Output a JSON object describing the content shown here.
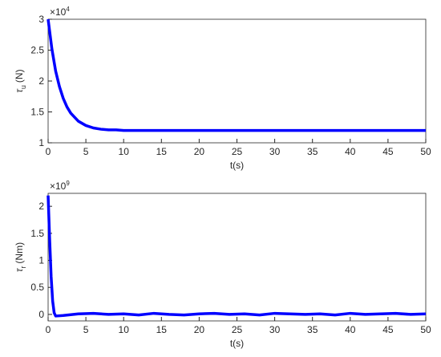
{
  "chart_data": [
    {
      "type": "line",
      "xlabel": "t(s)",
      "ylabel": {
        "symbol": "τ",
        "subscript": "u",
        "unit": "(N)"
      },
      "y_multiplier": {
        "base": "×10",
        "exponent": "4"
      },
      "x": [
        0,
        0.5,
        1,
        1.5,
        2,
        2.5,
        3,
        4,
        5,
        6,
        7,
        8,
        9,
        10,
        12.5,
        15,
        17.5,
        20,
        22.5,
        25,
        27.5,
        30,
        32.5,
        35,
        37.5,
        40,
        42.5,
        45,
        47.5,
        50
      ],
      "series": [
        {
          "color": "#0000ff",
          "values": [
            3.0,
            2.52,
            2.16,
            1.91,
            1.72,
            1.58,
            1.48,
            1.35,
            1.28,
            1.24,
            1.22,
            1.21,
            1.21,
            1.2,
            1.2,
            1.2,
            1.2,
            1.2,
            1.2,
            1.2,
            1.2,
            1.2,
            1.2,
            1.2,
            1.2,
            1.2,
            1.2,
            1.2,
            1.2,
            1.2
          ]
        }
      ],
      "xlim": [
        0,
        50
      ],
      "xticks": [
        0,
        5,
        10,
        15,
        20,
        25,
        30,
        35,
        40,
        45,
        50
      ],
      "ylim": [
        1,
        3
      ],
      "yticks": [
        1,
        1.5,
        2,
        2.5,
        3
      ]
    },
    {
      "type": "line",
      "xlabel": "t(s)",
      "ylabel": {
        "symbol": "τ",
        "subscript": "r",
        "unit": "(Nm)"
      },
      "y_multiplier": {
        "base": "×10",
        "exponent": "9"
      },
      "x": [
        0,
        0.2,
        0.4,
        0.6,
        0.8,
        1,
        2,
        4,
        6,
        8,
        10,
        12,
        14,
        16,
        18,
        20,
        22,
        24,
        26,
        28,
        30,
        32,
        34,
        36,
        38,
        40,
        42,
        44,
        46,
        48,
        50
      ],
      "series": [
        {
          "color": "#0000ff",
          "values": [
            2.2,
            1.4,
            0.7,
            0.25,
            0.03,
            -0.03,
            -0.02,
            0.01,
            0.02,
            0,
            0.01,
            -0.01,
            0.02,
            0,
            -0.01,
            0.01,
            0.02,
            0,
            0.01,
            -0.01,
            0.02,
            0.01,
            0,
            0.01,
            -0.01,
            0.02,
            0,
            0.01,
            0.02,
            0,
            0.01
          ]
        }
      ],
      "xlim": [
        0,
        50
      ],
      "xticks": [
        0,
        5,
        10,
        15,
        20,
        25,
        30,
        35,
        40,
        45,
        50
      ],
      "ylim": [
        -0.12,
        2.24
      ],
      "yticks": [
        0,
        0.5,
        1,
        1.5,
        2
      ]
    }
  ]
}
